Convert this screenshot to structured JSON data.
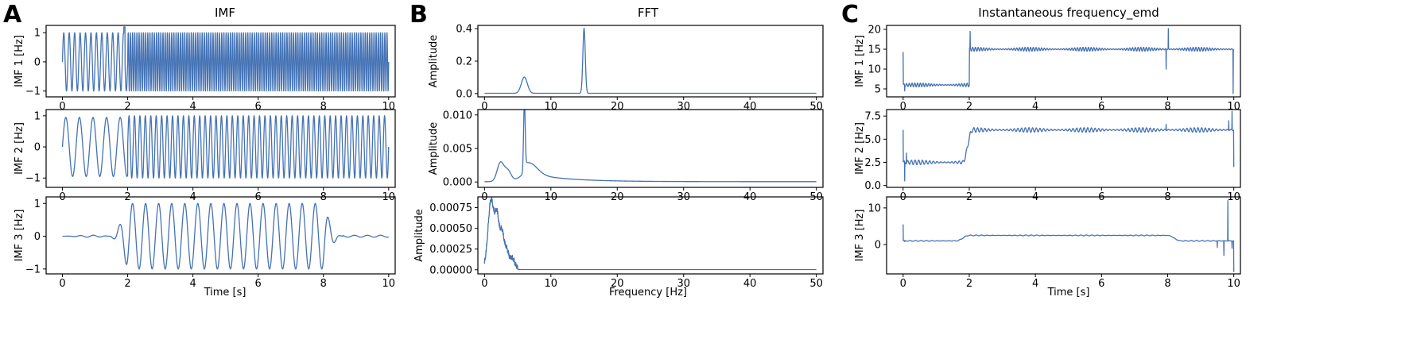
{
  "style": {
    "line_color": "#4472b4"
  },
  "panels": [
    {
      "letter": "A",
      "title": "IMF",
      "xlabel": "Time [s]"
    },
    {
      "letter": "B",
      "title": "FFT",
      "xlabel": "Frequency [Hz]"
    },
    {
      "letter": "C",
      "title": "Instantaneous frequency_emd",
      "xlabel": "Time [s]"
    }
  ],
  "chart_data": [
    {
      "type": "line",
      "panel": "A",
      "title": "IMF",
      "xlabel": "",
      "ylabel": "IMF 1 [Hz]",
      "xlim": [
        -0.5,
        10.2
      ],
      "ylim": [
        -1.2,
        1.25
      ],
      "xticks": [
        0,
        2,
        4,
        6,
        8,
        10
      ],
      "xticklabels": [
        "0",
        "2",
        "4",
        "6",
        "8",
        "10"
      ],
      "yticks": [
        -1,
        0,
        1
      ],
      "yticklabels": [
        "−1",
        "0",
        "1"
      ],
      "signal": {
        "kind": "oscillation",
        "segments": [
          {
            "t0": 0,
            "t1": 2,
            "freq": 6,
            "amp": 1.0
          },
          {
            "t0": 2,
            "t1": 10,
            "freq": 15,
            "amp": 1.0
          }
        ],
        "peak": {
          "x": 1.9,
          "y": 1.2
        }
      }
    },
    {
      "type": "line",
      "panel": "A",
      "title": "",
      "xlabel": "",
      "ylabel": "IMF 2 [Hz]",
      "xlim": [
        -0.5,
        10.2
      ],
      "ylim": [
        -1.3,
        1.2
      ],
      "xticks": [
        0,
        2,
        4,
        6,
        8,
        10
      ],
      "xticklabels": [
        "0",
        "2",
        "4",
        "6",
        "8",
        "10"
      ],
      "yticks": [
        -1,
        0,
        1
      ],
      "yticklabels": [
        "−1",
        "0",
        "1"
      ],
      "signal": {
        "kind": "oscillation",
        "segments": [
          {
            "t0": 0,
            "t1": 2,
            "freq": 2.4,
            "amp": 0.95
          },
          {
            "t0": 2,
            "t1": 10,
            "freq": 6,
            "amp": 1.0
          }
        ]
      }
    },
    {
      "type": "line",
      "panel": "A",
      "title": "",
      "xlabel": "Time [s]",
      "ylabel": "IMF 3 [Hz]",
      "xlim": [
        -0.5,
        10.2
      ],
      "ylim": [
        -1.15,
        1.2
      ],
      "xticks": [
        0,
        2,
        4,
        6,
        8,
        10
      ],
      "xticklabels": [
        "0",
        "2",
        "4",
        "6",
        "8",
        "10"
      ],
      "yticks": [
        -1,
        0,
        1
      ],
      "yticklabels": [
        "−1",
        "0",
        "1"
      ],
      "signal": {
        "kind": "burst",
        "t0": 2,
        "t1": 8,
        "freq": 2.5,
        "amp": 1.0
      }
    },
    {
      "type": "line",
      "panel": "B",
      "title": "FFT",
      "xlabel": "",
      "ylabel": "Amplitude",
      "xlim": [
        -1,
        51
      ],
      "ylim": [
        -0.02,
        0.42
      ],
      "xticks": [
        0,
        10,
        20,
        30,
        40,
        50
      ],
      "xticklabels": [
        "0",
        "10",
        "20",
        "30",
        "40",
        "50"
      ],
      "yticks": [
        0,
        0.2,
        0.4
      ],
      "yticklabels": [
        "0.0",
        "0.2",
        "0.4"
      ],
      "signal": {
        "kind": "spectrum",
        "base": 0.002,
        "peaks": [
          {
            "f": 6,
            "amp": 0.1,
            "width": 0.45
          },
          {
            "f": 15,
            "amp": 0.4,
            "width": 0.18
          }
        ]
      }
    },
    {
      "type": "line",
      "panel": "B",
      "title": "",
      "xlabel": "",
      "ylabel": "Amplitude",
      "xlim": [
        -1,
        51
      ],
      "ylim": [
        -0.0008,
        0.0108
      ],
      "xticks": [
        0,
        10,
        20,
        30,
        40,
        50
      ],
      "xticklabels": [
        "0",
        "10",
        "20",
        "30",
        "40",
        "50"
      ],
      "yticks": [
        0,
        0.005,
        0.01
      ],
      "yticklabels": [
        "0.000",
        "0.005",
        "0.010"
      ],
      "signal": {
        "kind": "spectrum",
        "base": 5e-05,
        "peaks": [
          {
            "f": 2.4,
            "amp": 0.0028,
            "width": 0.5
          },
          {
            "f": 3.5,
            "amp": 0.0016,
            "width": 0.5
          },
          {
            "f": 6,
            "amp": 0.0102,
            "width": 0.12
          },
          {
            "f": 6.8,
            "amp": 0.0016,
            "width": 1.2
          }
        ],
        "decay": {
          "amp": 0.0014,
          "rate": 0.18
        }
      }
    },
    {
      "type": "line",
      "panel": "B",
      "title": "",
      "xlabel": "Frequency [Hz]",
      "ylabel": "Amplitude",
      "xlim": [
        -1,
        51
      ],
      "ylim": [
        -5e-05,
        0.00088
      ],
      "xticks": [
        0,
        10,
        20,
        30,
        40,
        50
      ],
      "xticklabels": [
        "0",
        "10",
        "20",
        "30",
        "40",
        "50"
      ],
      "yticks": [
        0,
        0.00025,
        0.0005,
        0.00075
      ],
      "yticklabels": [
        "0.00000",
        "0.00025",
        "0.00050",
        "0.00075"
      ],
      "signal": {
        "kind": "spectrum",
        "base": 3e-06,
        "peaks": [
          {
            "f": 1.0,
            "amp": 0.00082,
            "width": 0.45
          },
          {
            "f": 1.9,
            "amp": 0.00055,
            "width": 0.3
          },
          {
            "f": 2.6,
            "amp": 0.0004,
            "width": 0.3
          },
          {
            "f": 3.3,
            "amp": 0.00022,
            "width": 0.35
          },
          {
            "f": 4.2,
            "amp": 0.00011,
            "width": 0.3
          }
        ],
        "noise_until": 5,
        "noise_amp": 6e-05
      }
    },
    {
      "type": "line",
      "panel": "C",
      "title": "Instantaneous frequency_emd",
      "xlabel": "",
      "ylabel": "IMF 1 [Hz]",
      "xlim": [
        -0.5,
        10.2
      ],
      "ylim": [
        3,
        21
      ],
      "xticks": [
        0,
        2,
        4,
        6,
        8,
        10
      ],
      "xticklabels": [
        "0",
        "2",
        "4",
        "6",
        "8",
        "10"
      ],
      "yticks": [
        5,
        10,
        15,
        20
      ],
      "yticklabels": [
        "5",
        "10",
        "15",
        "20"
      ],
      "signal": {
        "kind": "step",
        "levels": [
          {
            "t0": 0,
            "t1": 2,
            "y": 6
          },
          {
            "t0": 2,
            "t1": 10,
            "y": 15
          }
        ],
        "ripple": 0.5,
        "ripple_freq": 12,
        "spikes": [
          {
            "x": 0.0,
            "y": 14.3
          },
          {
            "x": 0.05,
            "y": 4.5
          },
          {
            "x": 2.03,
            "y": 19.5
          },
          {
            "x": 7.95,
            "y": 10
          },
          {
            "x": 8.02,
            "y": 20.2
          },
          {
            "x": 9.98,
            "y": 3.8
          }
        ]
      }
    },
    {
      "type": "line",
      "panel": "C",
      "title": "",
      "xlabel": "",
      "ylabel": "IMF 2 [Hz]",
      "xlim": [
        -0.5,
        10.2
      ],
      "ylim": [
        -0.2,
        8.2
      ],
      "xticks": [
        0,
        2,
        4,
        6,
        8,
        10
      ],
      "xticklabels": [
        "0",
        "2",
        "4",
        "6",
        "8",
        "10"
      ],
      "yticks": [
        0,
        2.5,
        5,
        7.5
      ],
      "yticklabels": [
        "0.0",
        "2.5",
        "5.0",
        "7.5"
      ],
      "signal": {
        "kind": "step",
        "levels": [
          {
            "t0": 0,
            "t1": 1.8,
            "y": 2.5
          },
          {
            "t0": 2.1,
            "t1": 10,
            "y": 6
          }
        ],
        "ripple": 0.25,
        "ripple_freq": 9,
        "spikes": [
          {
            "x": 0.0,
            "y": 6.0
          },
          {
            "x": 0.05,
            "y": 0.5
          },
          {
            "x": 0.1,
            "y": 3.5
          },
          {
            "x": 7.95,
            "y": 6.6
          },
          {
            "x": 9.85,
            "y": 7.0
          },
          {
            "x": 9.95,
            "y": 8.0
          },
          {
            "x": 10.0,
            "y": 2.0
          }
        ]
      }
    },
    {
      "type": "line",
      "panel": "C",
      "title": "",
      "xlabel": "Time [s]",
      "ylabel": "IMF 3 [Hz]",
      "xlim": [
        -0.5,
        10.2
      ],
      "ylim": [
        -8,
        13
      ],
      "xticks": [
        0,
        2,
        4,
        6,
        8,
        10
      ],
      "xticklabels": [
        "0",
        "2",
        "4",
        "6",
        "8",
        "10"
      ],
      "yticks": [
        0,
        10
      ],
      "yticklabels": [
        "0",
        "10"
      ],
      "signal": {
        "kind": "step",
        "levels": [
          {
            "t0": 0,
            "t1": 1.6,
            "y": 1.0
          },
          {
            "t0": 2,
            "t1": 8,
            "y": 2.5
          },
          {
            "t0": 8.4,
            "t1": 9.3,
            "y": 1.0
          }
        ],
        "ripple": 0.12,
        "ripple_freq": 6,
        "spikes": [
          {
            "x": 0.0,
            "y": 5.5
          },
          {
            "x": 0.05,
            "y": 0.8
          },
          {
            "x": 9.5,
            "y": -0.8
          },
          {
            "x": 9.7,
            "y": -3
          },
          {
            "x": 9.82,
            "y": 12
          },
          {
            "x": 9.95,
            "y": -1
          },
          {
            "x": 10.0,
            "y": -7.5
          }
        ]
      }
    }
  ]
}
